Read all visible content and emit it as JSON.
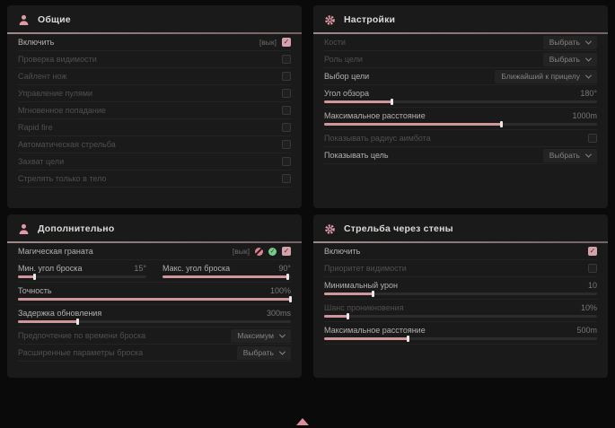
{
  "accent": "#d79ba3",
  "keybind_off": "[вык]",
  "panels": {
    "general": {
      "title": "Общие",
      "rows": [
        {
          "label": "Включить",
          "bind": "[вык]",
          "checked": true
        },
        {
          "label": "Проверка видимости",
          "checked": false
        },
        {
          "label": "Сайлент нож",
          "checked": false
        },
        {
          "label": "Управление пулями",
          "checked": false
        },
        {
          "label": "Мгновенное попадание",
          "checked": false
        },
        {
          "label": "Rapid fire",
          "checked": false
        },
        {
          "label": "Автоматическая стрельба",
          "checked": false
        },
        {
          "label": "Захват цели",
          "checked": false
        },
        {
          "label": "Стрелять только в тело",
          "checked": false
        }
      ]
    },
    "settings": {
      "title": "Настройки",
      "rows": [
        {
          "label": "Кости",
          "value": "Выбрать",
          "type": "select"
        },
        {
          "label": "Роль цели",
          "value": "Выбрать",
          "type": "select"
        },
        {
          "label": "Выбор цели",
          "value": "Ближайший к прицелу",
          "type": "select"
        },
        {
          "label": "Угол обзора",
          "value": "180°",
          "fill": 25,
          "type": "slider"
        },
        {
          "label": "Максимальное расстояние",
          "value": "1000m",
          "fill": 65,
          "type": "slider"
        },
        {
          "label": "Показывать радиус аимбота",
          "checked": false,
          "type": "checkbox"
        },
        {
          "label": "Показывать цель",
          "value": "Выбрать",
          "type": "select"
        }
      ]
    },
    "additional": {
      "title": "Дополнительно",
      "rows": [
        {
          "label": "Магическая граната",
          "bind": "[вык]",
          "checked": true
        },
        {
          "label": "Мин. угол броска",
          "value": "15°",
          "fill": 13
        },
        {
          "label": "Макс. угол броска",
          "value": "90°",
          "fill": 98
        },
        {
          "label": "Точность",
          "value": "100%",
          "fill": 100
        },
        {
          "label": "Задержка обновления",
          "value": "300ms",
          "fill": 22
        },
        {
          "label": "Предпочтение по времени броска",
          "value": "Максимум",
          "type": "select"
        },
        {
          "label": "Расширенные параметры броска",
          "value": "Выбрать",
          "type": "select"
        }
      ]
    },
    "walls": {
      "title": "Стрельба через стены",
      "rows": [
        {
          "label": "Включить",
          "checked": true
        },
        {
          "label": "Приоритет видимости",
          "checked": false
        },
        {
          "label": "Минимальный урон",
          "value": "10",
          "fill": 18
        },
        {
          "label": "Шанс проникновения",
          "value": "10%",
          "fill": 9
        },
        {
          "label": "Максимальное расстояние",
          "value": "500m",
          "fill": 31
        }
      ]
    }
  }
}
